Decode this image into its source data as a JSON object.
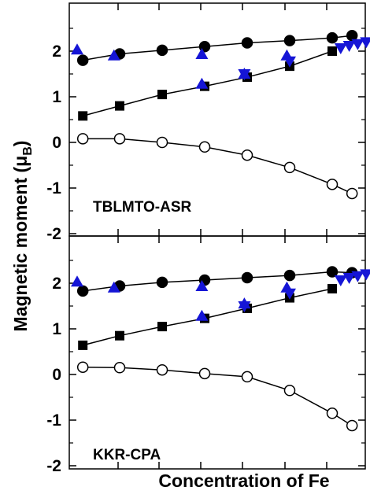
{
  "chart_data": [
    {
      "type": "scatter",
      "panel_label": "TBLMTO-ASR",
      "ylim": [
        -2,
        3
      ],
      "yticks": [
        "-2",
        "-1",
        "0",
        "1",
        "2"
      ],
      "grid": false,
      "series": [
        {
          "key": "filled_circles",
          "marker": "circle",
          "filled": true,
          "color": "#000000",
          "line": true,
          "x": [
            0.02,
            0.15,
            0.3,
            0.45,
            0.6,
            0.75,
            0.9,
            0.97
          ],
          "y": [
            1.8,
            1.94,
            2.02,
            2.1,
            2.18,
            2.23,
            2.29,
            2.34
          ]
        },
        {
          "key": "filled_squares",
          "marker": "square",
          "filled": true,
          "color": "#000000",
          "line": true,
          "x": [
            0.02,
            0.15,
            0.3,
            0.45,
            0.6,
            0.75,
            0.9
          ],
          "y": [
            0.58,
            0.8,
            1.05,
            1.23,
            1.43,
            1.67,
            2.0
          ]
        },
        {
          "key": "open_circles",
          "marker": "circle",
          "filled": false,
          "color": "#000000",
          "line": true,
          "x": [
            0.02,
            0.15,
            0.3,
            0.45,
            0.6,
            0.75,
            0.9,
            0.97
          ],
          "y": [
            0.08,
            0.08,
            0.0,
            -0.1,
            -0.28,
            -0.55,
            -0.92,
            -1.12
          ]
        },
        {
          "key": "blue_up_triangles",
          "marker": "triangle-up",
          "filled": true,
          "color": "#1515d6",
          "line": false,
          "x": [
            0.0,
            0.13,
            0.44,
            0.59,
            0.74
          ],
          "y": [
            2.03,
            1.9,
            1.93,
            1.5,
            1.9
          ]
        },
        {
          "key": "blue_up_triangles_mid",
          "marker": "triangle-up",
          "filled": true,
          "color": "#1515d6",
          "line": false,
          "x": [
            0.44
          ],
          "y": [
            1.28
          ]
        },
        {
          "key": "blue_down_triangles",
          "marker": "triangle-down",
          "filled": true,
          "color": "#1515d6",
          "line": false,
          "x": [
            0.59,
            0.75,
            0.93,
            0.96,
            0.99,
            1.02
          ],
          "y": [
            1.5,
            1.78,
            2.07,
            2.12,
            2.16,
            2.2
          ]
        }
      ]
    },
    {
      "type": "scatter",
      "panel_label": "KKR-CPA",
      "ylim": [
        -2,
        3
      ],
      "yticks": [
        "-2",
        "-1",
        "0",
        "1",
        "2"
      ],
      "grid": false,
      "series": [
        {
          "key": "filled_circles",
          "marker": "circle",
          "filled": true,
          "color": "#000000",
          "line": true,
          "x": [
            0.02,
            0.15,
            0.3,
            0.45,
            0.6,
            0.75,
            0.9,
            0.97
          ],
          "y": [
            1.83,
            1.94,
            2.02,
            2.07,
            2.12,
            2.17,
            2.25,
            2.23
          ]
        },
        {
          "key": "filled_squares",
          "marker": "square",
          "filled": true,
          "color": "#000000",
          "line": true,
          "x": [
            0.02,
            0.15,
            0.3,
            0.45,
            0.6,
            0.75,
            0.9
          ],
          "y": [
            0.64,
            0.85,
            1.05,
            1.23,
            1.45,
            1.68,
            1.88
          ]
        },
        {
          "key": "open_circles",
          "marker": "circle",
          "filled": false,
          "color": "#000000",
          "line": true,
          "x": [
            0.02,
            0.15,
            0.3,
            0.45,
            0.6,
            0.75,
            0.9,
            0.97
          ],
          "y": [
            0.16,
            0.15,
            0.1,
            0.02,
            -0.05,
            -0.35,
            -0.85,
            -1.12
          ]
        },
        {
          "key": "blue_up_triangles",
          "marker": "triangle-up",
          "filled": true,
          "color": "#1515d6",
          "line": false,
          "x": [
            0.0,
            0.13,
            0.44,
            0.59,
            0.74
          ],
          "y": [
            2.03,
            1.9,
            1.93,
            1.55,
            1.9
          ]
        },
        {
          "key": "blue_up_triangles_mid",
          "marker": "triangle-up",
          "filled": true,
          "color": "#1515d6",
          "line": false,
          "x": [
            0.44
          ],
          "y": [
            1.28
          ]
        },
        {
          "key": "blue_down_triangles",
          "marker": "triangle-down",
          "filled": true,
          "color": "#1515d6",
          "line": false,
          "x": [
            0.59,
            0.75,
            0.93,
            0.96,
            0.99,
            1.02
          ],
          "y": [
            1.5,
            1.78,
            2.07,
            2.12,
            2.16,
            2.2
          ]
        }
      ]
    }
  ],
  "axes": {
    "ylabel_main": "Magnetic moment (μ",
    "ylabel_sub": "B",
    "ylabel_close": ")",
    "xlabel": "Concentration of Fe"
  }
}
